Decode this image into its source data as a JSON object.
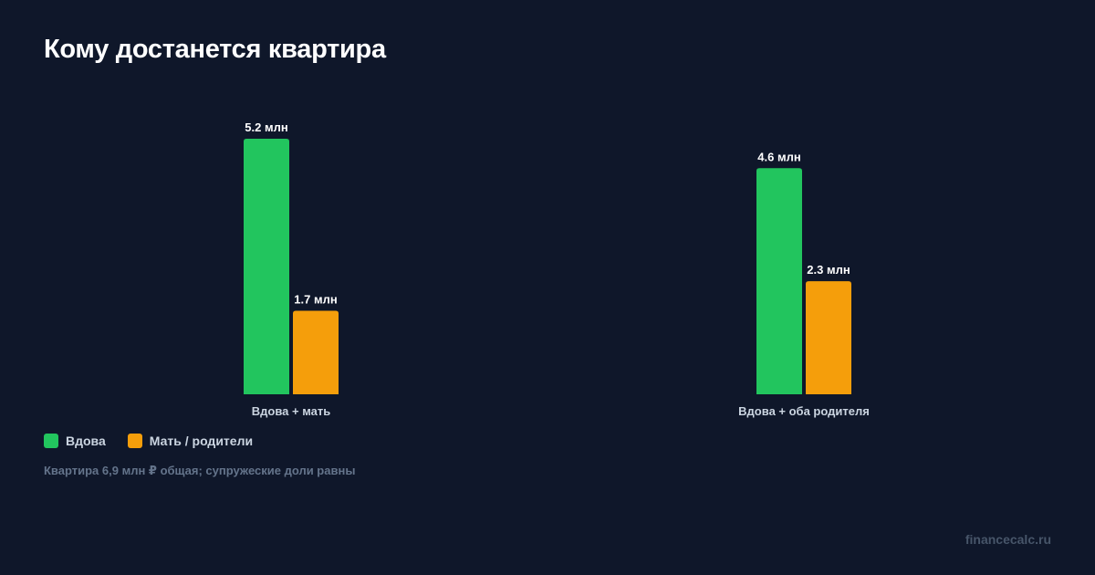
{
  "title": "Кому достанется квартира",
  "footnote": "Квартира 6,9 млн ₽ общая; супружеские доли равны",
  "brand": "financecalc.ru",
  "colors": {
    "background": "#0f172a",
    "widow": "#22c55e",
    "parents": "#f59e0b"
  },
  "legend": [
    {
      "label": "Вдова",
      "color": "#22c55e"
    },
    {
      "label": "Мать / родители",
      "color": "#f59e0b"
    }
  ],
  "chart_data": {
    "type": "bar",
    "title": "Кому достанется квартира",
    "categories": [
      "Вдова + мать",
      "Вдова + оба родителя"
    ],
    "series": [
      {
        "name": "Вдова",
        "values": [
          5.2,
          4.6
        ],
        "labels": [
          "5.2 млн",
          "4.6 млн"
        ],
        "color": "#22c55e"
      },
      {
        "name": "Мать / родители",
        "values": [
          1.7,
          2.3
        ],
        "labels": [
          "1.7 млн",
          "2.3 млн"
        ],
        "color": "#f59e0b"
      }
    ],
    "unit": "млн",
    "ylim": [
      0,
      5.2
    ],
    "grid": false,
    "legend_position": "bottom-left"
  }
}
